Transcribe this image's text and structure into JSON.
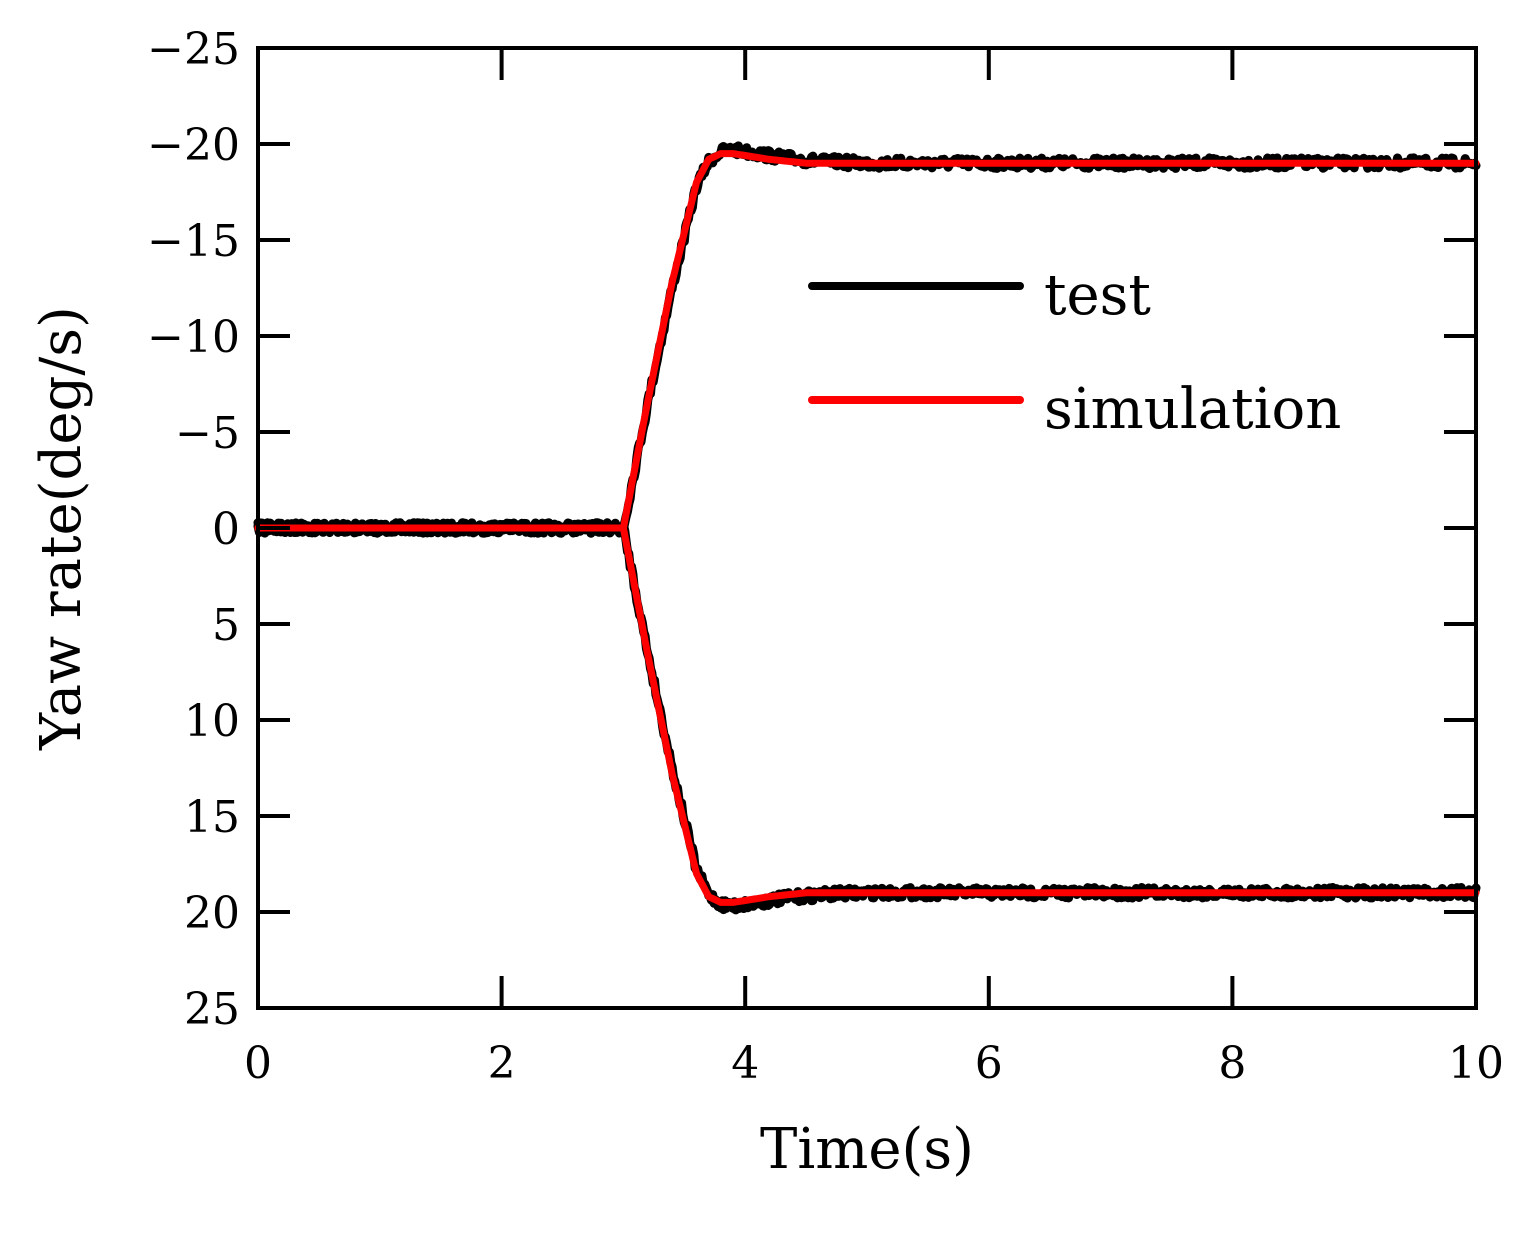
{
  "chart_data": {
    "type": "line",
    "title": "",
    "xlabel": "Time(s)",
    "ylabel": "Yaw rate(deg/s)",
    "xlim": [
      0,
      10
    ],
    "ylim": [
      -25,
      25
    ],
    "y_inverted": true,
    "xticks": [
      0,
      2,
      4,
      6,
      8,
      10
    ],
    "xtick_labels": [
      "0",
      "2",
      "4",
      "6",
      "8",
      "10"
    ],
    "yticks": [
      -25,
      -20,
      -15,
      -10,
      -5,
      0,
      5,
      10,
      15,
      20,
      25
    ],
    "ytick_labels": [
      "−25",
      "−20",
      "−15",
      "−10",
      "−5",
      "0",
      "5",
      "10",
      "15",
      "20",
      "25"
    ],
    "grid": false,
    "legend_position": "upper-right",
    "legend": [
      "test",
      "simulation"
    ],
    "series": [
      {
        "name": "test",
        "label": "test",
        "color": "#000000",
        "noisy": true,
        "x": [
          0,
          3.0,
          3.2,
          3.4,
          3.6,
          3.7,
          3.8,
          3.9,
          4.0,
          4.3,
          4.6,
          5.0,
          6.0,
          8.0,
          10.0
        ],
        "y": [
          0,
          0,
          -6.5,
          -12.5,
          -17.8,
          -19.1,
          -19.6,
          -19.7,
          -19.6,
          -19.3,
          -19.1,
          -19.0,
          -19.0,
          -19.0,
          -19.0
        ]
      },
      {
        "name": "test",
        "label": "test",
        "color": "#000000",
        "noisy": true,
        "x": [
          0,
          3.0,
          3.2,
          3.4,
          3.6,
          3.7,
          3.8,
          3.9,
          4.0,
          4.3,
          4.6,
          5.0,
          6.0,
          8.0,
          10.0
        ],
        "y": [
          0,
          0,
          6.5,
          12.5,
          17.8,
          19.1,
          19.6,
          19.7,
          19.6,
          19.3,
          19.1,
          19.0,
          19.0,
          19.0,
          19.0
        ]
      },
      {
        "name": "simulation",
        "label": "simulation",
        "color": "#ff0000",
        "noisy": false,
        "x": [
          0,
          3.0,
          3.2,
          3.4,
          3.6,
          3.7,
          3.8,
          3.9,
          4.0,
          4.2,
          4.5,
          4.8,
          5.2,
          6.0,
          8.0,
          10.0
        ],
        "y": [
          0,
          0,
          -6.6,
          -12.8,
          -18.0,
          -19.2,
          -19.5,
          -19.5,
          -19.4,
          -19.2,
          -19.0,
          -19.0,
          -19.0,
          -19.0,
          -19.0,
          -19.0
        ]
      },
      {
        "name": "simulation",
        "label": "simulation",
        "color": "#ff0000",
        "noisy": false,
        "x": [
          0,
          3.0,
          3.2,
          3.4,
          3.6,
          3.7,
          3.8,
          3.9,
          4.0,
          4.2,
          4.5,
          4.8,
          5.2,
          6.0,
          8.0,
          10.0
        ],
        "y": [
          0,
          0,
          6.6,
          12.8,
          18.0,
          19.2,
          19.5,
          19.5,
          19.4,
          19.2,
          19.0,
          19.0,
          19.0,
          19.0,
          19.0,
          19.0
        ]
      }
    ]
  }
}
